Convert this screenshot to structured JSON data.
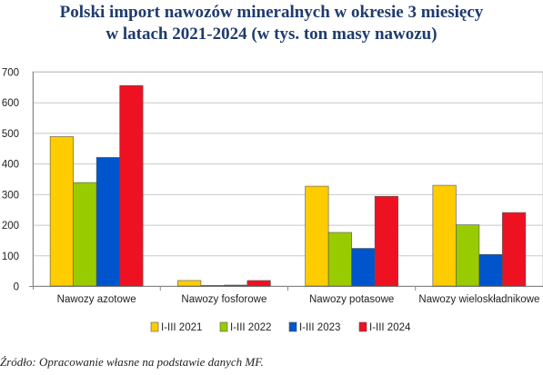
{
  "chart_data": {
    "type": "bar",
    "title_lines": [
      "Polski import nawozów mineralnych w okresie 3 miesięcy",
      "w latach 2021-2024 (w tys. ton masy nawozu)"
    ],
    "categories": [
      "Nawozy azotowe",
      "Nawozy fosforowe",
      "Nawozy potasowe",
      "Nawozy wieloskładnikowe"
    ],
    "series": [
      {
        "name": "I-III 2021",
        "color": "#ffcc00",
        "values": [
          488,
          18,
          326,
          329
        ]
      },
      {
        "name": "I-III 2022",
        "color": "#99cc00",
        "values": [
          338,
          2,
          175,
          200
        ]
      },
      {
        "name": "I-III 2023",
        "color": "#0055cc",
        "values": [
          420,
          3,
          123,
          103
        ]
      },
      {
        "name": "I-III 2024",
        "color": "#ee1122",
        "values": [
          655,
          18,
          293,
          240
        ]
      }
    ],
    "ylim": [
      0,
      700
    ],
    "yticks": [
      0,
      100,
      200,
      300,
      400,
      500,
      600,
      700
    ],
    "grid": true,
    "legend_position": "bottom"
  },
  "source_note": "Źródło: Opracowanie własne na podstawie danych MF."
}
